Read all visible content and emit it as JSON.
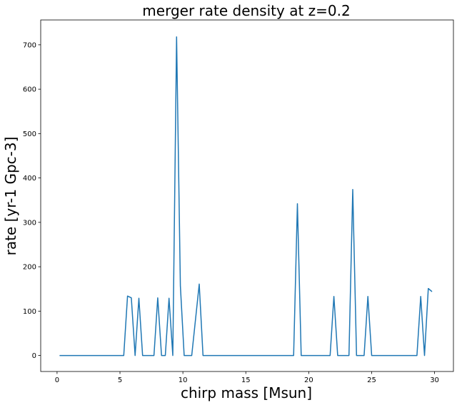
{
  "chart_data": {
    "type": "line",
    "title": "merger rate density at z=0.2",
    "xlabel": "chirp mass [Msun]",
    "ylabel": "rate [yr-1 Gpc-3]",
    "xlim": [
      -1.3,
      31.5
    ],
    "ylim": [
      -36,
      756
    ],
    "xticks": [
      0,
      5,
      10,
      15,
      20,
      25,
      30
    ],
    "yticks": [
      0,
      100,
      200,
      300,
      400,
      500,
      600,
      700
    ],
    "grid": false,
    "legend": "none",
    "colors": {
      "line": "#1f77b4"
    },
    "series": [
      {
        "x": [
          0.2,
          5.3,
          5.6,
          5.9,
          6.2,
          6.5,
          6.8,
          7.1,
          7.7,
          8.0,
          8.3,
          8.6,
          8.9,
          9.2,
          9.5,
          9.8,
          10.1,
          10.7,
          11.3,
          11.6,
          18.8,
          19.1,
          19.4,
          21.7,
          22.0,
          22.3,
          23.2,
          23.5,
          23.8,
          24.4,
          24.7,
          25.0,
          28.6,
          28.9,
          29.2,
          29.5,
          29.8
        ],
        "y": [
          0,
          0,
          134,
          130,
          0,
          129,
          0,
          0,
          0,
          130,
          0,
          0,
          129,
          0,
          718,
          157,
          0,
          0,
          161,
          0,
          0,
          342,
          0,
          0,
          133,
          0,
          0,
          374,
          0,
          0,
          133,
          0,
          0,
          133,
          0,
          151,
          144
        ]
      }
    ]
  }
}
